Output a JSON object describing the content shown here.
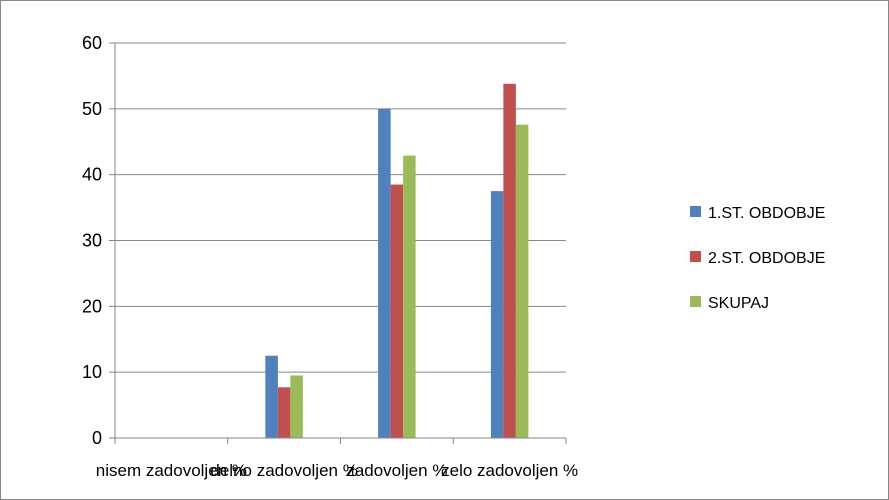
{
  "chart_data": {
    "type": "bar",
    "categories": [
      "nisem zadovoljen   %",
      "delno zadovoljen  %",
      "zadovoljen  %",
      "zelo zadovoljen  %"
    ],
    "series": [
      {
        "name": "1.ST. OBDOBJE",
        "color": "#4F81BD",
        "values": [
          0,
          12.5,
          50,
          37.5
        ]
      },
      {
        "name": "2.ST. OBDOBJE",
        "color": "#C0504D",
        "values": [
          0,
          7.7,
          38.5,
          53.8
        ]
      },
      {
        "name": "SKUPAJ",
        "color": "#9BBB59",
        "values": [
          0,
          9.5,
          42.9,
          47.6
        ]
      }
    ],
    "ylim": [
      0,
      60
    ],
    "yticks": [
      0,
      10,
      20,
      30,
      40,
      50,
      60
    ],
    "grid": true,
    "legend_position": "right",
    "title": "",
    "xlabel": "",
    "ylabel": ""
  }
}
